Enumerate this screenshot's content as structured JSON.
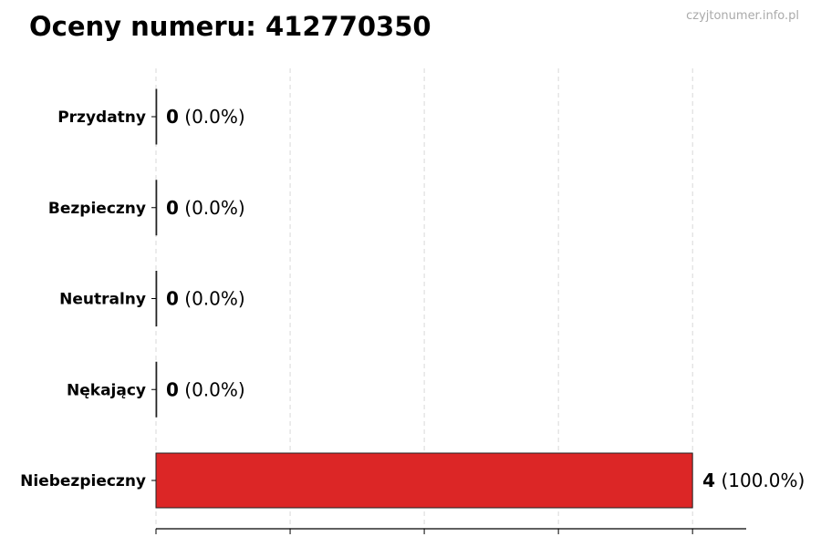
{
  "chart_data": {
    "type": "bar",
    "orientation": "horizontal",
    "title": "Oceny numeru: 412770350",
    "watermark": "czyjtonumer.info.pl",
    "categories": [
      "Przydatny",
      "Bezpieczny",
      "Neutralny",
      "Nękający",
      "Niebezpieczny"
    ],
    "values": [
      0,
      0,
      0,
      0,
      4
    ],
    "percent_labels": [
      "(0.0%)",
      "(0.0%)",
      "(0.0%)",
      "(0.0%)",
      "(100.0%)"
    ],
    "colors": [
      "#dc2626",
      "#dc2626",
      "#dc2626",
      "#dc2626",
      "#dc2626"
    ],
    "xlim": [
      0,
      4.4
    ],
    "xticks": [
      0,
      1,
      2,
      3,
      4
    ],
    "grid": "x, dashed",
    "xlabel": "",
    "ylabel": ""
  }
}
